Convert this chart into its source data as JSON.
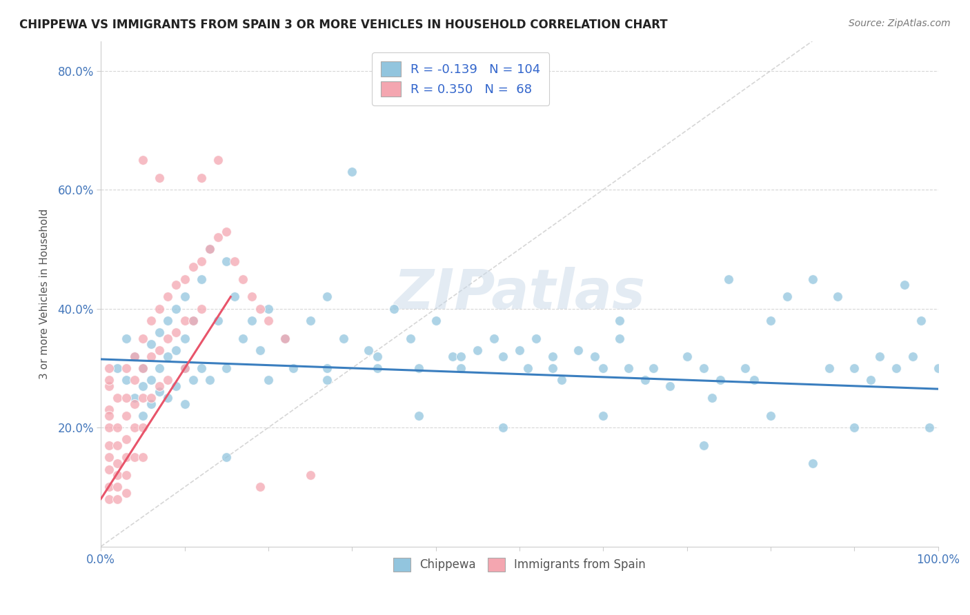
{
  "title": "CHIPPEWA VS IMMIGRANTS FROM SPAIN 3 OR MORE VEHICLES IN HOUSEHOLD CORRELATION CHART",
  "source": "Source: ZipAtlas.com",
  "ylabel": "3 or more Vehicles in Household",
  "xlim": [
    0.0,
    1.0
  ],
  "ylim": [
    0.0,
    0.85
  ],
  "color_blue": "#92C5DE",
  "color_pink": "#F4A6B0",
  "trendline_blue": "#3A7EBF",
  "trendline_pink": "#E8546A",
  "diagonal_color": "#CCCCCC",
  "watermark": "ZIPatlas",
  "legend_r1_val": "-0.139",
  "legend_n1_val": "104",
  "legend_r2_val": "0.350",
  "legend_n2_val": "68",
  "chippewa_x": [
    0.02,
    0.03,
    0.03,
    0.04,
    0.04,
    0.05,
    0.05,
    0.05,
    0.06,
    0.06,
    0.06,
    0.07,
    0.07,
    0.07,
    0.08,
    0.08,
    0.08,
    0.09,
    0.09,
    0.09,
    0.1,
    0.1,
    0.1,
    0.1,
    0.11,
    0.11,
    0.12,
    0.12,
    0.13,
    0.13,
    0.14,
    0.15,
    0.15,
    0.16,
    0.17,
    0.18,
    0.19,
    0.2,
    0.2,
    0.22,
    0.23,
    0.25,
    0.27,
    0.27,
    0.29,
    0.3,
    0.32,
    0.33,
    0.35,
    0.37,
    0.38,
    0.4,
    0.42,
    0.43,
    0.45,
    0.47,
    0.48,
    0.5,
    0.51,
    0.52,
    0.54,
    0.55,
    0.57,
    0.59,
    0.6,
    0.62,
    0.63,
    0.65,
    0.66,
    0.68,
    0.7,
    0.72,
    0.74,
    0.75,
    0.77,
    0.78,
    0.8,
    0.82,
    0.85,
    0.87,
    0.88,
    0.9,
    0.92,
    0.93,
    0.95,
    0.96,
    0.97,
    0.98,
    0.99,
    1.0,
    0.54,
    0.62,
    0.43,
    0.33,
    0.27,
    0.15,
    0.73,
    0.8,
    0.9,
    0.48,
    0.6,
    0.38,
    0.72,
    0.85
  ],
  "chippewa_y": [
    0.3,
    0.28,
    0.35,
    0.25,
    0.32,
    0.3,
    0.27,
    0.22,
    0.34,
    0.28,
    0.24,
    0.36,
    0.3,
    0.26,
    0.38,
    0.32,
    0.25,
    0.4,
    0.33,
    0.27,
    0.42,
    0.35,
    0.3,
    0.24,
    0.38,
    0.28,
    0.45,
    0.3,
    0.5,
    0.28,
    0.38,
    0.48,
    0.3,
    0.42,
    0.35,
    0.38,
    0.33,
    0.4,
    0.28,
    0.35,
    0.3,
    0.38,
    0.42,
    0.3,
    0.35,
    0.63,
    0.33,
    0.32,
    0.4,
    0.35,
    0.3,
    0.38,
    0.32,
    0.3,
    0.33,
    0.35,
    0.32,
    0.33,
    0.3,
    0.35,
    0.3,
    0.28,
    0.33,
    0.32,
    0.3,
    0.35,
    0.3,
    0.28,
    0.3,
    0.27,
    0.32,
    0.3,
    0.28,
    0.45,
    0.3,
    0.28,
    0.38,
    0.42,
    0.45,
    0.3,
    0.42,
    0.3,
    0.28,
    0.32,
    0.3,
    0.44,
    0.32,
    0.38,
    0.2,
    0.3,
    0.32,
    0.38,
    0.32,
    0.3,
    0.28,
    0.15,
    0.25,
    0.22,
    0.2,
    0.2,
    0.22,
    0.22,
    0.17,
    0.14
  ],
  "spain_x": [
    0.01,
    0.01,
    0.01,
    0.01,
    0.01,
    0.01,
    0.01,
    0.01,
    0.01,
    0.01,
    0.01,
    0.02,
    0.02,
    0.02,
    0.02,
    0.02,
    0.02,
    0.02,
    0.03,
    0.03,
    0.03,
    0.03,
    0.03,
    0.03,
    0.03,
    0.04,
    0.04,
    0.04,
    0.04,
    0.04,
    0.05,
    0.05,
    0.05,
    0.05,
    0.05,
    0.06,
    0.06,
    0.06,
    0.07,
    0.07,
    0.07,
    0.08,
    0.08,
    0.08,
    0.09,
    0.09,
    0.1,
    0.1,
    0.1,
    0.11,
    0.11,
    0.12,
    0.12,
    0.13,
    0.14,
    0.15,
    0.16,
    0.17,
    0.18,
    0.19,
    0.2,
    0.22,
    0.25,
    0.14,
    0.12,
    0.19,
    0.07,
    0.05
  ],
  "spain_y": [
    0.27,
    0.3,
    0.23,
    0.2,
    0.17,
    0.15,
    0.13,
    0.1,
    0.08,
    0.22,
    0.28,
    0.25,
    0.2,
    0.17,
    0.14,
    0.12,
    0.1,
    0.08,
    0.3,
    0.25,
    0.22,
    0.18,
    0.15,
    0.12,
    0.09,
    0.32,
    0.28,
    0.24,
    0.2,
    0.15,
    0.35,
    0.3,
    0.25,
    0.2,
    0.15,
    0.38,
    0.32,
    0.25,
    0.4,
    0.33,
    0.27,
    0.42,
    0.35,
    0.28,
    0.44,
    0.36,
    0.45,
    0.38,
    0.3,
    0.47,
    0.38,
    0.48,
    0.4,
    0.5,
    0.52,
    0.53,
    0.48,
    0.45,
    0.42,
    0.4,
    0.38,
    0.35,
    0.12,
    0.65,
    0.62,
    0.1,
    0.62,
    0.65
  ],
  "blue_trend_x": [
    0.0,
    1.0
  ],
  "blue_trend_y": [
    0.315,
    0.265
  ],
  "pink_trend_x": [
    0.0,
    0.155
  ],
  "pink_trend_y": [
    0.08,
    0.42
  ]
}
